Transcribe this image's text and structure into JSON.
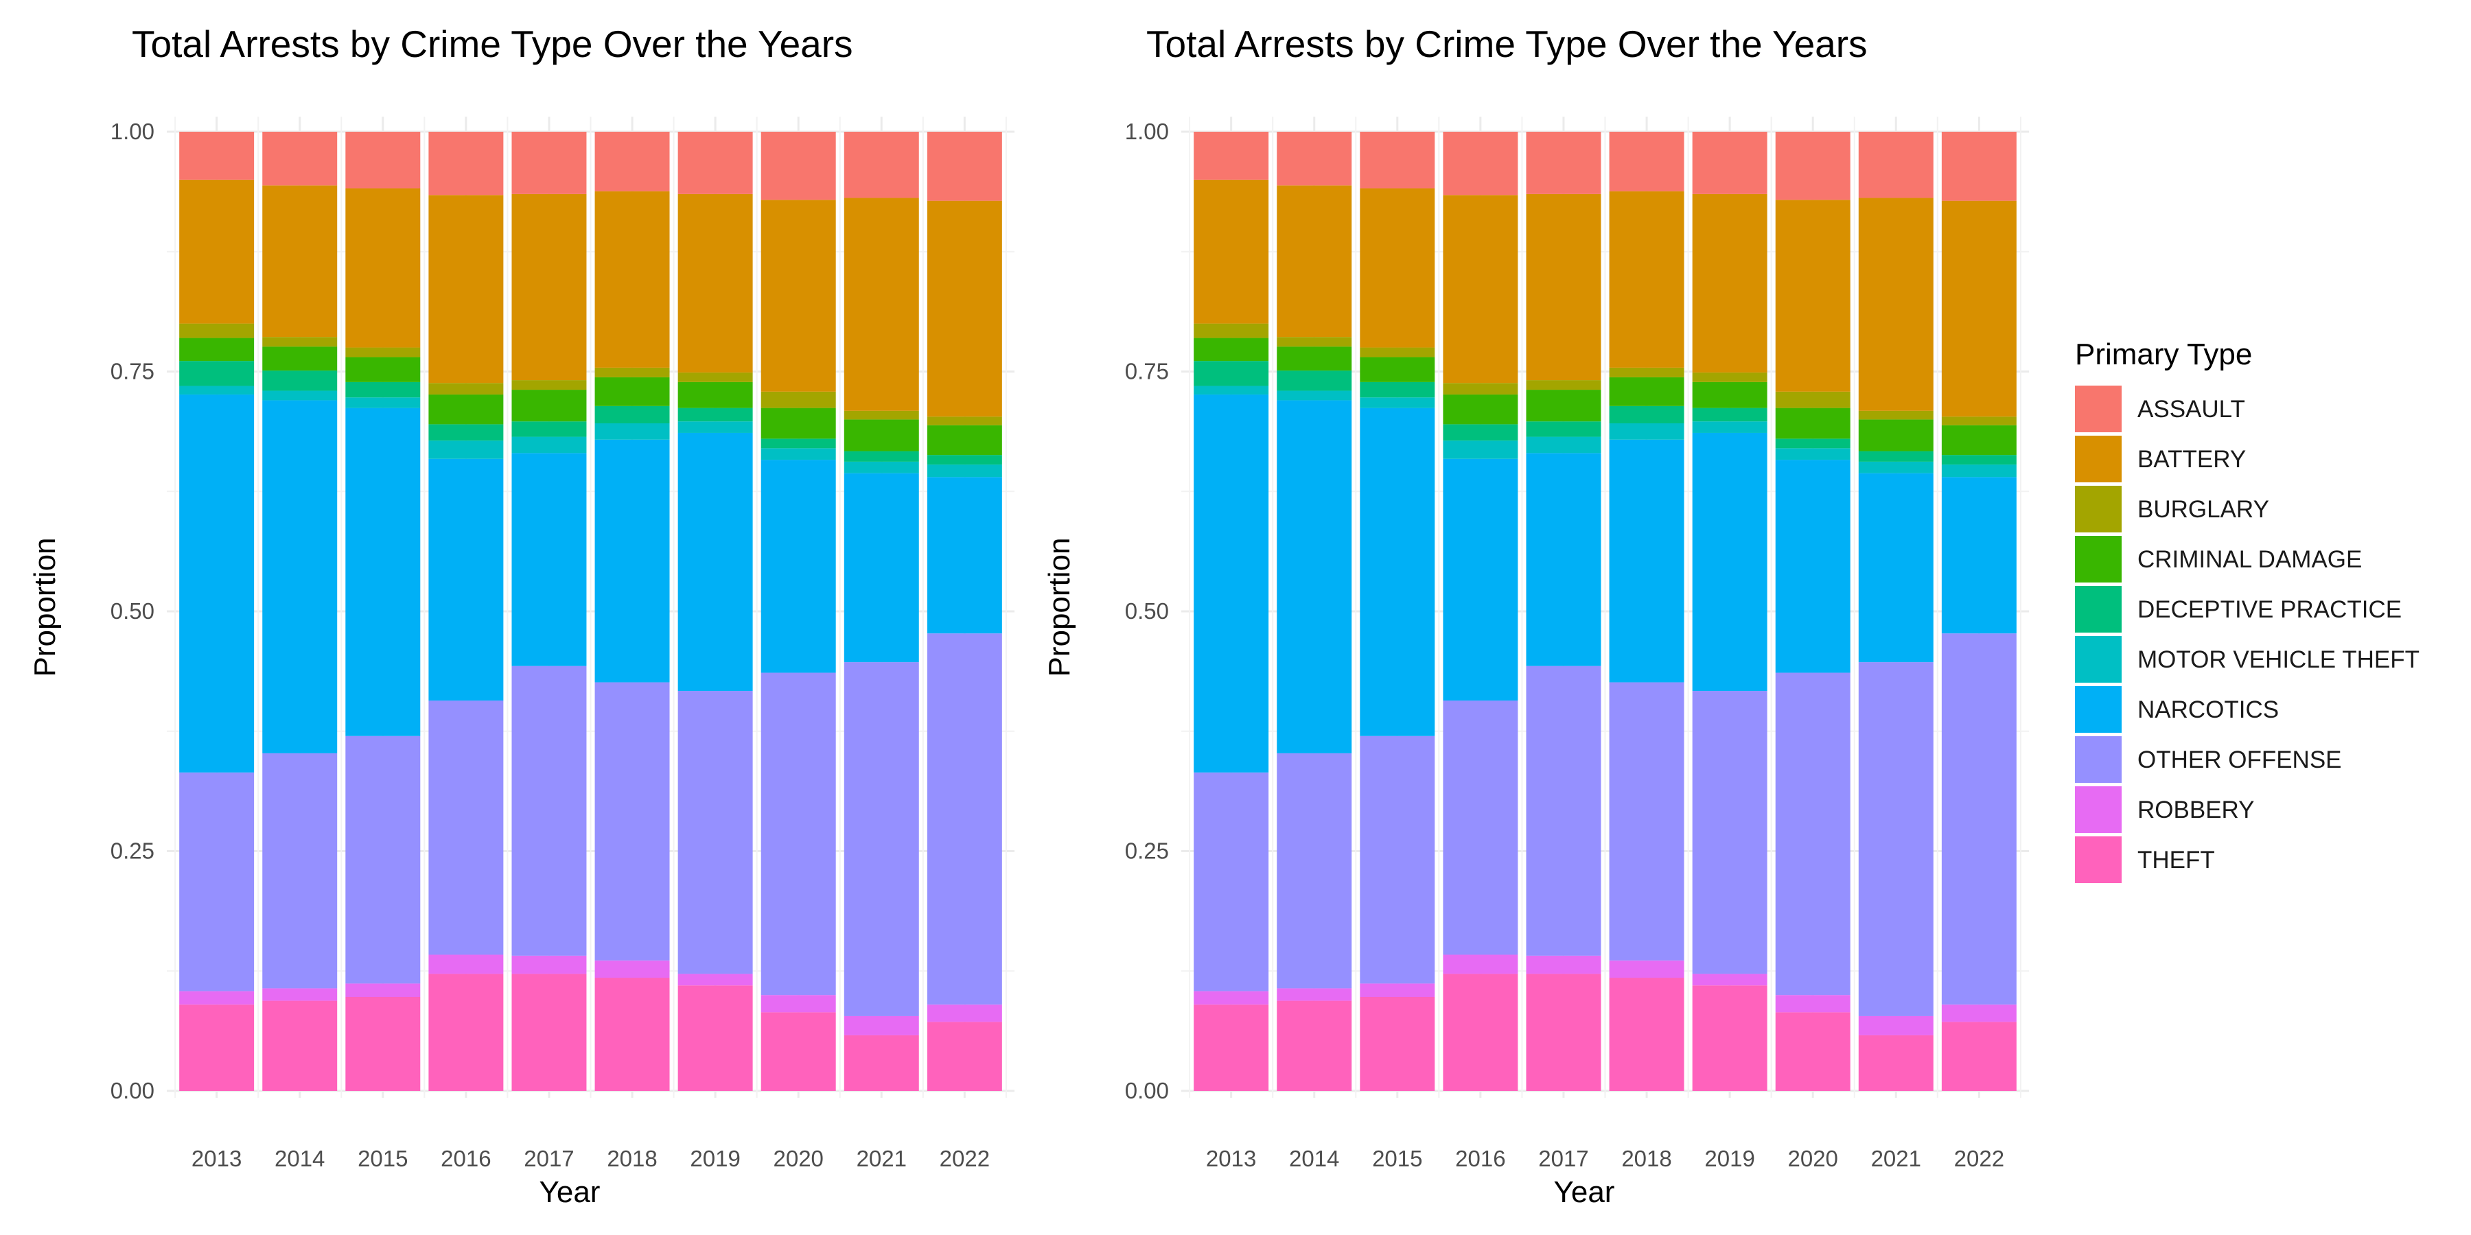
{
  "chart_data": [
    {
      "type": "bar",
      "stacked": true,
      "normalized": true,
      "title": "Total Arrests by Crime Type Over the Years",
      "xlabel": "Year",
      "ylabel": "Proportion",
      "ylim": [
        0,
        1
      ],
      "yticks": [
        "0.00",
        "0.25",
        "0.50",
        "0.75",
        "1.00"
      ],
      "grid": true,
      "categories": [
        "2013",
        "2014",
        "2015",
        "2016",
        "2017",
        "2018",
        "2019",
        "2020",
        "2021",
        "2022"
      ],
      "series": [
        {
          "name": "THEFT",
          "values": [
            0.09,
            0.094,
            0.098,
            0.122,
            0.122,
            0.118,
            0.11,
            0.082,
            0.058,
            0.072
          ]
        },
        {
          "name": "ROBBERY",
          "values": [
            0.014,
            0.013,
            0.014,
            0.02,
            0.019,
            0.018,
            0.012,
            0.018,
            0.02,
            0.018
          ]
        },
        {
          "name": "OTHER OFFENSE",
          "values": [
            0.228,
            0.245,
            0.258,
            0.265,
            0.302,
            0.29,
            0.295,
            0.336,
            0.369,
            0.387
          ]
        },
        {
          "name": "NARCOTICS",
          "values": [
            0.394,
            0.368,
            0.342,
            0.252,
            0.222,
            0.253,
            0.269,
            0.222,
            0.197,
            0.163
          ]
        },
        {
          "name": "MOTOR VEHICLE THEFT",
          "values": [
            0.009,
            0.01,
            0.011,
            0.019,
            0.017,
            0.017,
            0.012,
            0.012,
            0.012,
            0.013
          ]
        },
        {
          "name": "DECEPTIVE PRACTICE",
          "values": [
            0.026,
            0.021,
            0.016,
            0.017,
            0.016,
            0.018,
            0.014,
            0.01,
            0.011,
            0.01
          ]
        },
        {
          "name": "CRIMINAL DAMAGE",
          "values": [
            0.024,
            0.025,
            0.026,
            0.031,
            0.033,
            0.03,
            0.027,
            0.032,
            0.033,
            0.031
          ]
        },
        {
          "name": "BURGLARY",
          "values": [
            0.015,
            0.01,
            0.01,
            0.012,
            0.01,
            0.01,
            0.01,
            0.017,
            0.009,
            0.009
          ]
        },
        {
          "name": "BATTERY",
          "values": [
            0.15,
            0.158,
            0.166,
            0.196,
            0.194,
            0.184,
            0.186,
            0.2,
            0.222,
            0.225
          ]
        },
        {
          "name": "ASSAULT",
          "values": [
            0.05,
            0.056,
            0.059,
            0.066,
            0.065,
            0.062,
            0.065,
            0.071,
            0.069,
            0.072
          ]
        }
      ]
    },
    {
      "type": "bar",
      "stacked": true,
      "normalized": true,
      "title": "Total Arrests by Crime Type Over the Years",
      "xlabel": "Year",
      "ylabel": "Proportion",
      "ylim": [
        0,
        1
      ],
      "yticks": [
        "0.00",
        "0.25",
        "0.50",
        "0.75",
        "1.00"
      ],
      "grid": true,
      "categories": [
        "2013",
        "2014",
        "2015",
        "2016",
        "2017",
        "2018",
        "2019",
        "2020",
        "2021",
        "2022"
      ],
      "series": [
        {
          "name": "THEFT",
          "values": [
            0.09,
            0.094,
            0.098,
            0.122,
            0.122,
            0.118,
            0.11,
            0.082,
            0.058,
            0.072
          ]
        },
        {
          "name": "ROBBERY",
          "values": [
            0.014,
            0.013,
            0.014,
            0.02,
            0.019,
            0.018,
            0.012,
            0.018,
            0.02,
            0.018
          ]
        },
        {
          "name": "OTHER OFFENSE",
          "values": [
            0.228,
            0.245,
            0.258,
            0.265,
            0.302,
            0.29,
            0.295,
            0.336,
            0.369,
            0.387
          ]
        },
        {
          "name": "NARCOTICS",
          "values": [
            0.394,
            0.368,
            0.342,
            0.252,
            0.222,
            0.253,
            0.269,
            0.222,
            0.197,
            0.163
          ]
        },
        {
          "name": "MOTOR VEHICLE THEFT",
          "values": [
            0.009,
            0.01,
            0.011,
            0.019,
            0.017,
            0.017,
            0.012,
            0.012,
            0.012,
            0.013
          ]
        },
        {
          "name": "DECEPTIVE PRACTICE",
          "values": [
            0.026,
            0.021,
            0.016,
            0.017,
            0.016,
            0.018,
            0.014,
            0.01,
            0.011,
            0.01
          ]
        },
        {
          "name": "CRIMINAL DAMAGE",
          "values": [
            0.024,
            0.025,
            0.026,
            0.031,
            0.033,
            0.03,
            0.027,
            0.032,
            0.033,
            0.031
          ]
        },
        {
          "name": "BURGLARY",
          "values": [
            0.015,
            0.01,
            0.01,
            0.012,
            0.01,
            0.01,
            0.01,
            0.017,
            0.009,
            0.009
          ]
        },
        {
          "name": "BATTERY",
          "values": [
            0.15,
            0.158,
            0.166,
            0.196,
            0.194,
            0.184,
            0.186,
            0.2,
            0.222,
            0.225
          ]
        },
        {
          "name": "ASSAULT",
          "values": [
            0.05,
            0.056,
            0.059,
            0.066,
            0.065,
            0.062,
            0.065,
            0.071,
            0.069,
            0.072
          ]
        }
      ]
    }
  ],
  "legend": {
    "title": "Primary Type",
    "placement": "right",
    "items": [
      {
        "label": "ASSAULT",
        "color": "#F8766D"
      },
      {
        "label": "BATTERY",
        "color": "#D89000"
      },
      {
        "label": "BURGLARY",
        "color": "#A3A500"
      },
      {
        "label": "CRIMINAL DAMAGE",
        "color": "#39B600"
      },
      {
        "label": "DECEPTIVE PRACTICE",
        "color": "#00BF7D"
      },
      {
        "label": "MOTOR VEHICLE THEFT",
        "color": "#00BFC4"
      },
      {
        "label": "NARCOTICS",
        "color": "#00B0F6"
      },
      {
        "label": "OTHER OFFENSE",
        "color": "#9590FF"
      },
      {
        "label": "ROBBERY",
        "color": "#E76BF3"
      },
      {
        "label": "THEFT",
        "color": "#FF62BC"
      }
    ]
  }
}
